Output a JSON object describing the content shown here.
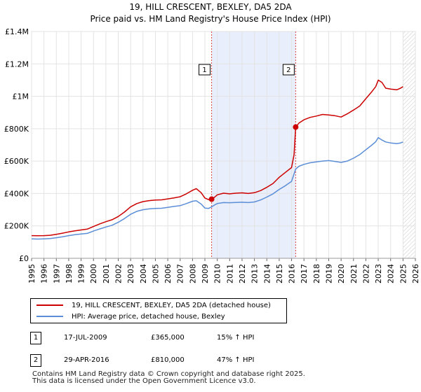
{
  "title_line1": "19, HILL CRESCENT, BEXLEY, DA5 2DA",
  "title_line2": "Price paid vs. HM Land Registry's House Price Index (HPI)",
  "chart_data": {
    "type": "line",
    "title": "19, HILL CRESCENT, BEXLEY, DA5 2DA — Price paid vs. HM Land Registry's House Price Index (HPI)",
    "xlim": [
      1995,
      2026
    ],
    "ylim": [
      0,
      1400000
    ],
    "y_ticks": [
      {
        "value": 0,
        "label": "£0"
      },
      {
        "value": 200000,
        "label": "£200K"
      },
      {
        "value": 400000,
        "label": "£400K"
      },
      {
        "value": 600000,
        "label": "£600K"
      },
      {
        "value": 800000,
        "label": "£800K"
      },
      {
        "value": 1000000,
        "label": "£1M"
      },
      {
        "value": 1200000,
        "label": "£1.2M"
      },
      {
        "value": 1400000,
        "label": "£1.4M"
      }
    ],
    "x_ticks": [
      "1995",
      "1996",
      "1997",
      "1998",
      "1999",
      "2000",
      "2001",
      "2002",
      "2003",
      "2004",
      "2005",
      "2006",
      "2007",
      "2008",
      "2009",
      "2010",
      "2011",
      "2012",
      "2013",
      "2014",
      "2015",
      "2016",
      "2017",
      "2018",
      "2019",
      "2020",
      "2021",
      "2022",
      "2023",
      "2024",
      "2025",
      "2026"
    ],
    "shaded_period": [
      2009.54,
      2016.33
    ],
    "forecast_start": 2025.0,
    "series": [
      {
        "name": "19, HILL CRESCENT, BEXLEY, DA5 2DA (detached house)",
        "color": "#cc0000",
        "x": [
          1995.0,
          1995.5,
          1996.0,
          1996.5,
          1997.0,
          1997.5,
          1998.0,
          1998.5,
          1999.0,
          1999.5,
          2000.0,
          2000.5,
          2001.0,
          2001.5,
          2002.0,
          2002.5,
          2003.0,
          2003.5,
          2004.0,
          2004.5,
          2005.0,
          2005.5,
          2006.0,
          2006.5,
          2007.0,
          2007.5,
          2008.0,
          2008.3,
          2008.7,
          2009.0,
          2009.3,
          2009.54,
          2009.8,
          2010.0,
          2010.5,
          2011.0,
          2011.5,
          2012.0,
          2012.5,
          2013.0,
          2013.5,
          2014.0,
          2014.5,
          2015.0,
          2015.5,
          2016.0,
          2016.2,
          2016.33,
          2016.6,
          2017.0,
          2017.5,
          2018.0,
          2018.5,
          2019.0,
          2019.5,
          2020.0,
          2020.5,
          2021.0,
          2021.5,
          2022.0,
          2022.5,
          2022.8,
          2023.0,
          2023.3,
          2023.6,
          2024.0,
          2024.5,
          2024.8,
          2025.0
        ],
        "values": [
          140000,
          139000,
          140000,
          142000,
          148000,
          155000,
          163000,
          170000,
          175000,
          180000,
          196000,
          212000,
          226000,
          238000,
          258000,
          285000,
          318000,
          338000,
          350000,
          356000,
          360000,
          361000,
          367000,
          373000,
          380000,
          398000,
          420000,
          430000,
          405000,
          372000,
          362000,
          365000,
          378000,
          392000,
          402000,
          398000,
          402000,
          404000,
          400000,
          405000,
          418000,
          438000,
          462000,
          500000,
          530000,
          560000,
          640000,
          810000,
          835000,
          855000,
          870000,
          878000,
          888000,
          885000,
          880000,
          872000,
          892000,
          915000,
          940000,
          985000,
          1030000,
          1060000,
          1100000,
          1085000,
          1050000,
          1045000,
          1040000,
          1050000,
          1060000
        ]
      },
      {
        "name": "HPI: Average price, detached house, Bexley",
        "color": "#5b8ed6",
        "x": [
          1995.0,
          1995.5,
          1996.0,
          1996.5,
          1997.0,
          1997.5,
          1998.0,
          1998.5,
          1999.0,
          1999.5,
          2000.0,
          2000.5,
          2001.0,
          2001.5,
          2002.0,
          2002.5,
          2003.0,
          2003.5,
          2004.0,
          2004.5,
          2005.0,
          2005.5,
          2006.0,
          2006.5,
          2007.0,
          2007.5,
          2008.0,
          2008.3,
          2008.7,
          2009.0,
          2009.3,
          2009.54,
          2009.8,
          2010.0,
          2010.5,
          2011.0,
          2011.5,
          2012.0,
          2012.5,
          2013.0,
          2013.5,
          2014.0,
          2014.5,
          2015.0,
          2015.5,
          2016.0,
          2016.33,
          2016.6,
          2017.0,
          2017.5,
          2018.0,
          2018.5,
          2019.0,
          2019.5,
          2020.0,
          2020.5,
          2021.0,
          2021.5,
          2022.0,
          2022.5,
          2022.8,
          2023.0,
          2023.3,
          2023.6,
          2024.0,
          2024.5,
          2024.8,
          2025.0
        ],
        "values": [
          120000,
          119000,
          120000,
          122000,
          127000,
          133000,
          140000,
          146000,
          150000,
          154000,
          168000,
          181000,
          193000,
          204000,
          222000,
          245000,
          272000,
          290000,
          300000,
          305000,
          308000,
          309000,
          314000,
          320000,
          325000,
          338000,
          352000,
          355000,
          335000,
          310000,
          308000,
          317000,
          330000,
          338000,
          344000,
          343000,
          345000,
          346000,
          344000,
          348000,
          360000,
          378000,
          398000,
          425000,
          448000,
          475000,
          551000,
          568000,
          580000,
          590000,
          595000,
          600000,
          603000,
          598000,
          592000,
          600000,
          618000,
          640000,
          670000,
          700000,
          720000,
          745000,
          730000,
          718000,
          712000,
          708000,
          712000,
          718000
        ]
      }
    ],
    "annotations": [
      {
        "label": "1",
        "x": 2009.54,
        "y": 365000
      },
      {
        "label": "2",
        "x": 2016.33,
        "y": 810000
      }
    ]
  },
  "legend": {
    "items": [
      {
        "label": "19, HILL CRESCENT, BEXLEY, DA5 2DA (detached house)",
        "color": "#cc0000"
      },
      {
        "label": "HPI: Average price, detached house, Bexley",
        "color": "#5b8ed6"
      }
    ]
  },
  "transactions": [
    {
      "num": "1",
      "date": "17-JUL-2009",
      "price": "£365,000",
      "hpi": "15% ↑ HPI"
    },
    {
      "num": "2",
      "date": "29-APR-2016",
      "price": "£810,000",
      "hpi": "47% ↑ HPI"
    }
  ],
  "footer": {
    "line1": "Contains HM Land Registry data © Crown copyright and database right 2025.",
    "line2": "This data is licensed under the Open Government Licence v3.0."
  }
}
